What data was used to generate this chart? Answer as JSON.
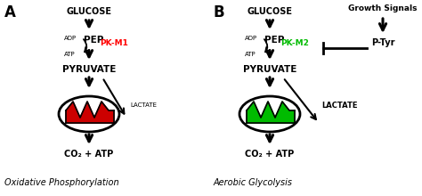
{
  "bg_color": "#ffffff",
  "panel_A": {
    "label": "A",
    "glucose": "GLUCOSE",
    "pep": "PEP",
    "adp": "ADP",
    "atp": "ATP",
    "pk": "PK-M1",
    "pk_color": "#ff0000",
    "pyruvate": "PYRUVATE",
    "lactate": "LACTATE",
    "co2atp": "CO₂ + ATP",
    "caption": "Oxidative Phosphorylation",
    "mito_color": "#cc0000"
  },
  "panel_B": {
    "label": "B",
    "glucose": "GLUCOSE",
    "growth": "Growth Signals",
    "pep": "PEP",
    "adp": "ADP",
    "atp": "ATP",
    "pk": "PK-M2",
    "pk_color": "#00bb00",
    "pyruvate": "PYRUVATE",
    "lactate": "LACTATE",
    "co2atp": "CO₂ + ATP",
    "ptyr": "P-Tyr",
    "caption": "Aerobic Glycolysis",
    "mito_color": "#00bb00"
  }
}
